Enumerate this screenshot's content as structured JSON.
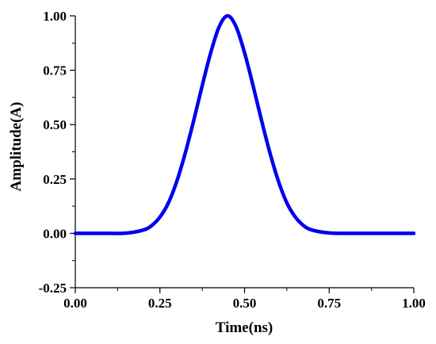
{
  "chart_data": {
    "type": "line",
    "title": "",
    "xlabel": "Time(ns)",
    "ylabel": "Amplitude(A)",
    "xlim": [
      0.0,
      1.0
    ],
    "ylim": [
      -0.25,
      1.0
    ],
    "x_ticks": [
      "0.00",
      "0.25",
      "0.50",
      "0.75",
      "1.00"
    ],
    "y_ticks": [
      "-0.25",
      "0.00",
      "0.25",
      "0.50",
      "0.75",
      "1.00"
    ],
    "grid": false,
    "series": [
      {
        "color": "#0000ee",
        "x": [
          0.0,
          0.05,
          0.1,
          0.15,
          0.2,
          0.225,
          0.25,
          0.275,
          0.3,
          0.325,
          0.35,
          0.375,
          0.4,
          0.425,
          0.45,
          0.475,
          0.5,
          0.525,
          0.55,
          0.575,
          0.6,
          0.625,
          0.65,
          0.675,
          0.7,
          0.75,
          0.8,
          0.85,
          0.9,
          0.95,
          1.0
        ],
        "y": [
          0.0,
          0.0,
          0.0,
          0.001,
          0.015,
          0.035,
          0.075,
          0.14,
          0.24,
          0.37,
          0.52,
          0.68,
          0.83,
          0.95,
          1.0,
          0.95,
          0.83,
          0.68,
          0.52,
          0.37,
          0.24,
          0.14,
          0.075,
          0.035,
          0.015,
          0.002,
          0.0,
          0.0,
          0.0,
          0.0,
          0.0
        ]
      }
    ]
  }
}
